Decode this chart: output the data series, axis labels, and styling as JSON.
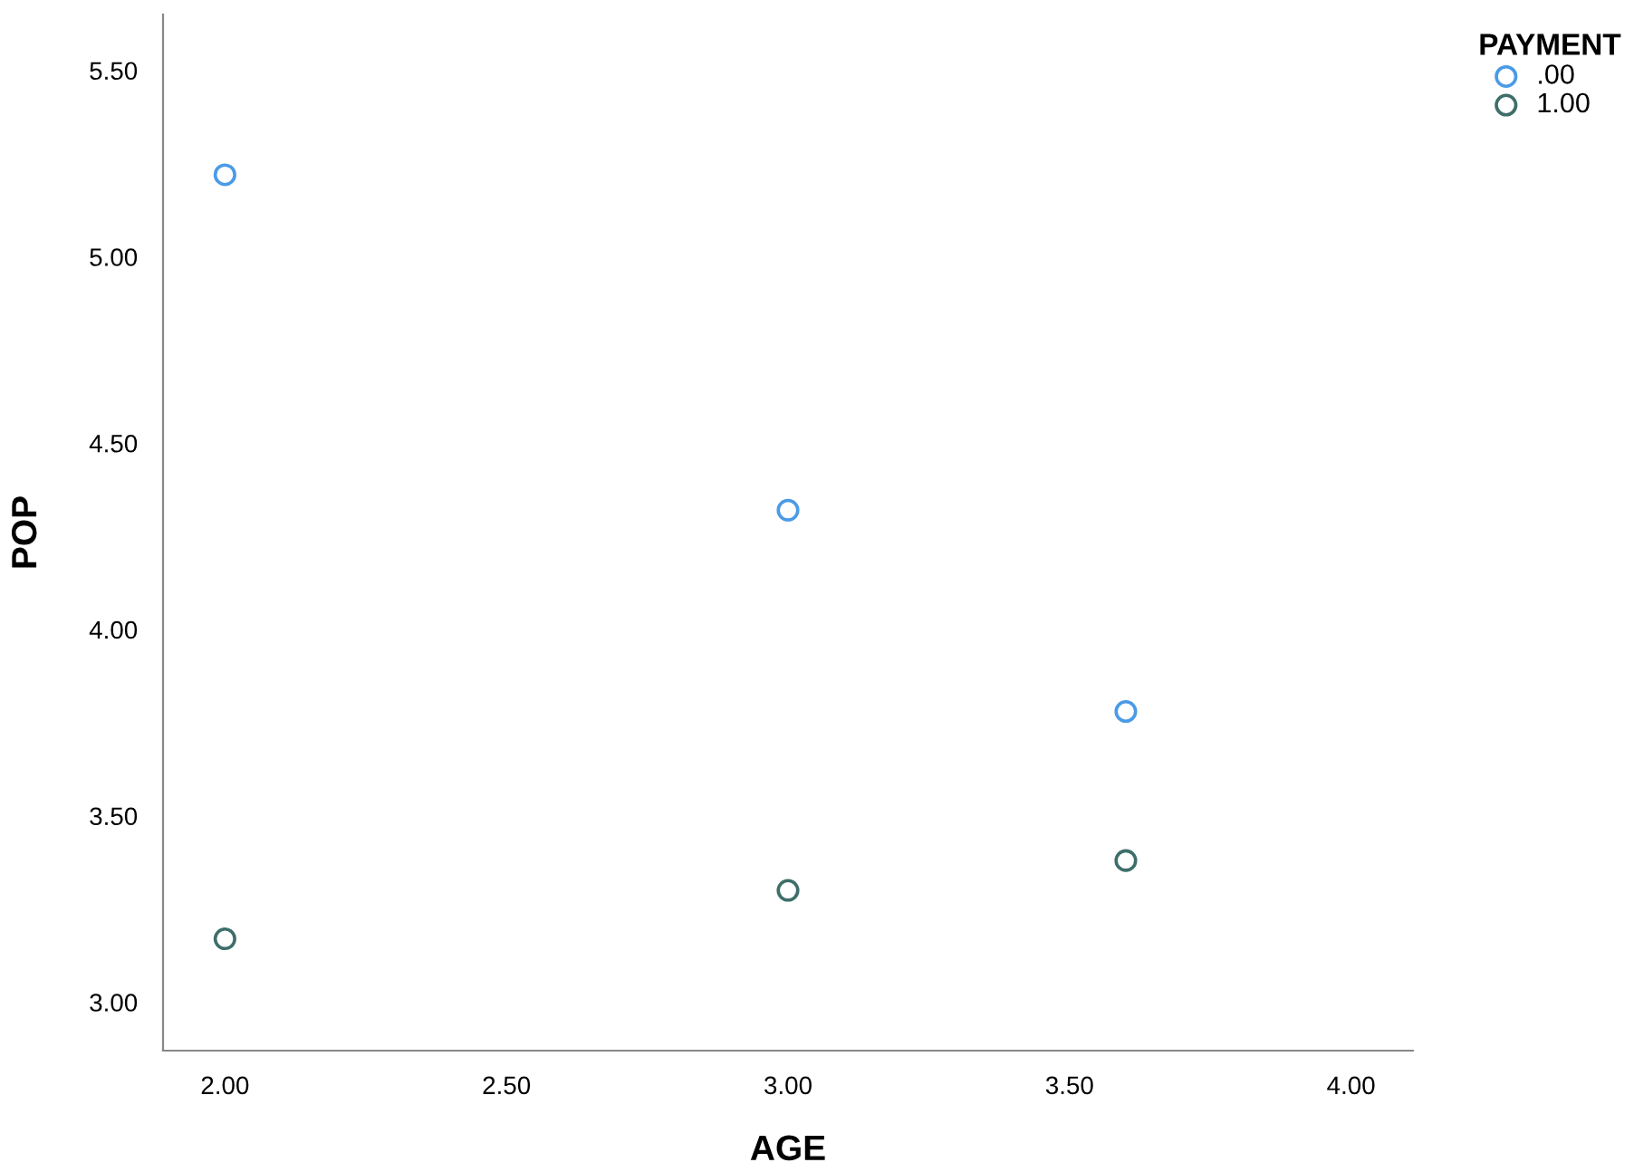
{
  "chart_data": {
    "type": "scatter",
    "xlabel": "AGE",
    "ylabel": "POP",
    "legend_title": "PAYMENT",
    "legend": "top right",
    "marker": "circle",
    "grid": false,
    "x": [
      2.0,
      3.0,
      3.6
    ],
    "series": [
      {
        "name": ".00",
        "color": "#4a9be6",
        "values": [
          5.22,
          4.32,
          3.78
        ]
      },
      {
        "name": "1.00",
        "color": "#3e6e6a",
        "values": [
          3.17,
          3.3,
          3.38
        ]
      }
    ],
    "xlim": [
      1.89,
      4.11
    ],
    "ylim": [
      2.87,
      5.65
    ],
    "xticks": [
      {
        "value": 2.0,
        "label": "2.00"
      },
      {
        "value": 2.5,
        "label": "2.50"
      },
      {
        "value": 3.0,
        "label": "3.00"
      },
      {
        "value": 3.5,
        "label": "3.50"
      },
      {
        "value": 4.0,
        "label": "4.00"
      }
    ],
    "yticks": [
      {
        "value": 3.0,
        "label": "3.00"
      },
      {
        "value": 3.5,
        "label": "3.50"
      },
      {
        "value": 4.0,
        "label": "4.00"
      },
      {
        "value": 4.5,
        "label": "4.50"
      },
      {
        "value": 5.0,
        "label": "5.00"
      },
      {
        "value": 5.5,
        "label": "5.50"
      }
    ]
  }
}
